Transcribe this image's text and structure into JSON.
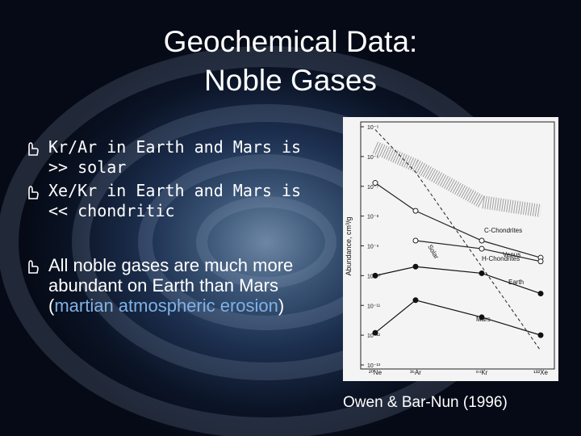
{
  "title": [
    "Geochemical Data:",
    "Noble Gases"
  ],
  "bullets": [
    {
      "text": "Kr/Ar in Earth and Mars is >> solar"
    },
    {
      "text": "Xe/Kr in Earth and Mars is << chondritic"
    },
    {
      "text": "All noble gases are much more abundant on Earth than Mars (",
      "highlight": "martian atmospheric erosion",
      "after": ")"
    }
  ],
  "caption": "Owen & Bar-Nun (1996)",
  "figure": {
    "chart_data": {
      "type": "line",
      "ylabel": "Abundance, cm³/g",
      "categories": [
        "²⁰Ne",
        "³⁶Ar",
        "⁸⁴Kr",
        "¹³²Xe"
      ],
      "ylog": true,
      "ylim": [
        1e-13,
        1e-05
      ],
      "yticks": [
        {
          "value": 1e-05,
          "label": "10⁻⁵"
        },
        {
          "value": 1e-06,
          "label": "10⁻⁶"
        },
        {
          "value": 1e-07,
          "label": "10⁻⁷"
        },
        {
          "value": 1e-08,
          "label": "10⁻⁸"
        },
        {
          "value": 1e-09,
          "label": "10⁻⁹"
        },
        {
          "value": 1e-10,
          "label": "10⁻¹⁰"
        },
        {
          "value": 1e-11,
          "label": "10⁻¹¹"
        },
        {
          "value": 1e-12,
          "label": "10⁻¹²"
        },
        {
          "value": 1e-13,
          "label": "10⁻¹³"
        }
      ],
      "series": [
        {
          "name": "C-Chondrites",
          "color": "#777777",
          "style": "hatched",
          "marker": "none",
          "values": [
            2e-06,
            5e-07,
            3e-08,
            1.5e-08
          ]
        },
        {
          "name": "Venus",
          "color": "#222222",
          "style": "solid",
          "marker": "open",
          "values": [
            1.3e-07,
            1.5e-08,
            1.5e-09,
            4e-10
          ]
        },
        {
          "name": "H-Chondrites",
          "color": "#222222",
          "style": "solid",
          "marker": "open",
          "values": [
            null,
            1.5e-09,
            8e-10,
            3e-10
          ]
        },
        {
          "name": "Solar",
          "color": "#222222",
          "style": "dashed",
          "marker": "none",
          "values": [
            8e-06,
            3e-07,
            2e-10,
            3e-13
          ]
        },
        {
          "name": "Earth",
          "color": "#111111",
          "style": "solid",
          "marker": "filled",
          "values": [
            1e-10,
            2e-10,
            1.2e-10,
            2.5e-11
          ]
        },
        {
          "name": "Mars",
          "color": "#111111",
          "style": "solid",
          "marker": "filled",
          "values": [
            1.2e-12,
            1.5e-11,
            4e-12,
            1e-12
          ]
        }
      ]
    }
  }
}
